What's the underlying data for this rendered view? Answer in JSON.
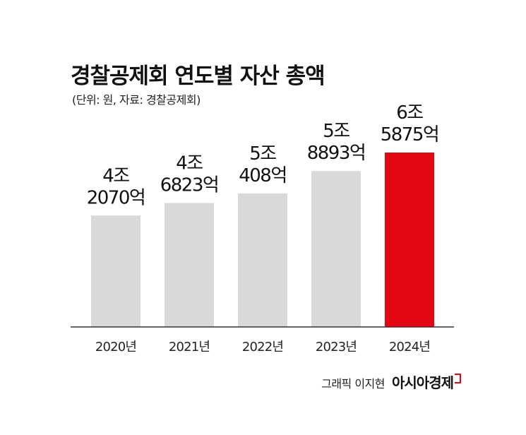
{
  "title": "경찰공제회 연도별 자산 총액",
  "subtitle": "(단위: 원, 자료: 경찰공제회)",
  "credit": {
    "artist": "그래픽 이지현",
    "brand": "아시아경제"
  },
  "colors": {
    "bar_default": "#d9d9d9",
    "bar_highlight": "#e30613",
    "axis": "#333333"
  },
  "chart_data": {
    "type": "bar",
    "categories": [
      "2020년",
      "2021년",
      "2022년",
      "2023년",
      "2024년"
    ],
    "values": [
      42070,
      46823,
      50408,
      58893,
      65875
    ],
    "value_unit": "억원",
    "value_labels": [
      [
        "4조",
        "2070억"
      ],
      [
        "4조",
        "6823억"
      ],
      [
        "5조",
        "408억"
      ],
      [
        "5조",
        "8893억"
      ],
      [
        "6조",
        "5875억"
      ]
    ],
    "highlight_index": 4,
    "title": "경찰공제회 연도별 자산 총액",
    "xlabel": "",
    "ylabel": "",
    "ylim": [
      0,
      70000
    ],
    "grid": false,
    "legend": "none"
  }
}
